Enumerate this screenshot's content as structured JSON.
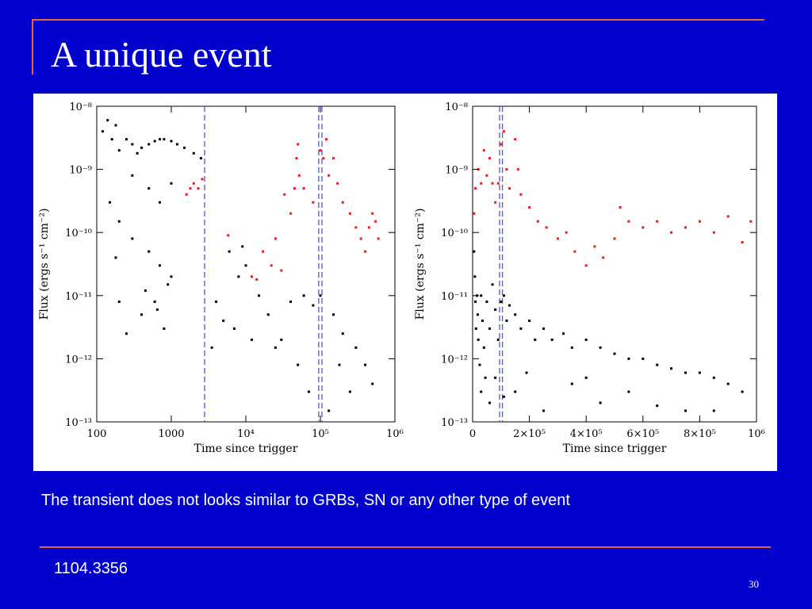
{
  "slide": {
    "title": "A unique event",
    "caption": "The transient does not looks similar to GRBs, SN or any other type of event",
    "reference": "1104.3356",
    "page_number": "30",
    "accent_color": "#e8643c",
    "background_color": "#0000cc"
  },
  "chart_data": [
    {
      "type": "scatter",
      "title": "",
      "xlabel": "Time since trigger",
      "ylabel": "Flux (ergs s⁻¹ cm⁻²)",
      "xscale": "log",
      "yscale": "log",
      "xlim": [
        100,
        1000000
      ],
      "ylim": [
        1e-13,
        1e-08
      ],
      "x_ticks": [
        {
          "v": 100,
          "label": "100"
        },
        {
          "v": 1000,
          "label": "1000"
        },
        {
          "v": 10000,
          "label": "10⁴"
        },
        {
          "v": 100000,
          "label": "10⁵"
        },
        {
          "v": 1000000,
          "label": "10⁶"
        }
      ],
      "y_ticks": [
        {
          "v": 1e-08,
          "label": "10⁻⁸"
        },
        {
          "v": 1e-09,
          "label": "10⁻⁹"
        },
        {
          "v": 1e-10,
          "label": "10⁻¹⁰"
        },
        {
          "v": 1e-11,
          "label": "10⁻¹¹"
        },
        {
          "v": 1e-12,
          "label": "10⁻¹²"
        },
        {
          "v": 1e-13,
          "label": "10⁻¹³"
        }
      ],
      "vlines": [
        2800,
        95000,
        105000
      ],
      "series": [
        {
          "color": "#000000",
          "points": [
            [
              120,
              4e-09
            ],
            [
              140,
              6e-09
            ],
            [
              160,
              3e-09
            ],
            [
              180,
              5e-09
            ],
            [
              200,
              2e-09
            ],
            [
              250,
              3e-09
            ],
            [
              300,
              2.5e-09
            ],
            [
              350,
              1.8e-09
            ],
            [
              400,
              2.2e-09
            ],
            [
              500,
              2.5e-09
            ],
            [
              600,
              2.8e-09
            ],
            [
              700,
              3e-09
            ],
            [
              800,
              3e-09
            ],
            [
              1000,
              2.8e-09
            ],
            [
              1200,
              2.5e-09
            ],
            [
              1500,
              2.2e-09
            ],
            [
              2000,
              1.8e-09
            ],
            [
              2500,
              1.5e-09
            ],
            [
              300,
              8e-10
            ],
            [
              500,
              5e-10
            ],
            [
              700,
              3e-10
            ],
            [
              1000,
              6e-10
            ],
            [
              150,
              3e-10
            ],
            [
              200,
              1.5e-10
            ],
            [
              300,
              8e-11
            ],
            [
              500,
              5e-11
            ],
            [
              700,
              3e-11
            ],
            [
              1000,
              2e-11
            ],
            [
              200,
              8e-12
            ],
            [
              400,
              5e-12
            ],
            [
              600,
              8e-12
            ],
            [
              800,
              3e-12
            ],
            [
              6000,
              5e-11
            ],
            [
              8000,
              2e-11
            ],
            [
              10000,
              3e-11
            ],
            [
              15000,
              1e-11
            ],
            [
              20000,
              5e-12
            ],
            [
              30000,
              2e-12
            ],
            [
              40000,
              8e-12
            ],
            [
              60000,
              1e-11
            ],
            [
              80000,
              7e-12
            ],
            [
              100000,
              1e-11
            ],
            [
              150000,
              5e-12
            ],
            [
              200000,
              2.5e-12
            ],
            [
              300000,
              1.5e-12
            ],
            [
              400000,
              8e-13
            ],
            [
              500000,
              4e-13
            ],
            [
              4000,
              8e-12
            ],
            [
              5000,
              4e-12
            ],
            [
              7000,
              3e-12
            ],
            [
              12000,
              2e-12
            ],
            [
              25000,
              1.5e-12
            ],
            [
              50000,
              8e-13
            ],
            [
              70000,
              3e-13
            ],
            [
              130000,
              1.5e-13
            ],
            [
              250000,
              3e-13
            ],
            [
              180000,
              8e-13
            ],
            [
              3500,
              1.5e-12
            ],
            [
              9000,
              6e-11
            ],
            [
              250,
              2.5e-12
            ],
            [
              180,
              4e-11
            ],
            [
              450,
              1.2e-11
            ],
            [
              900,
              1.5e-11
            ],
            [
              650,
              6e-12
            ]
          ]
        },
        {
          "color": "#e02020",
          "points": [
            [
              1600,
              4e-10
            ],
            [
              1800,
              5e-10
            ],
            [
              2000,
              6e-10
            ],
            [
              2300,
              5e-10
            ],
            [
              2600,
              7e-10
            ],
            [
              5800,
              9e-11
            ],
            [
              12000,
              2e-11
            ],
            [
              14000,
              1.8e-11
            ],
            [
              17000,
              5e-11
            ],
            [
              22000,
              3e-11
            ],
            [
              25000,
              8e-11
            ],
            [
              30000,
              2.5e-11
            ],
            [
              33000,
              4e-10
            ],
            [
              40000,
              2e-10
            ],
            [
              45000,
              5e-10
            ],
            [
              48000,
              1.5e-09
            ],
            [
              50000,
              2.5e-09
            ],
            [
              52000,
              8e-10
            ],
            [
              60000,
              5e-10
            ],
            [
              80000,
              3e-10
            ],
            [
              100000,
              2e-09
            ],
            [
              110000,
              1.5e-09
            ],
            [
              120000,
              3e-09
            ],
            [
              130000,
              8e-10
            ],
            [
              150000,
              1.5e-09
            ],
            [
              170000,
              6e-10
            ],
            [
              200000,
              3e-10
            ],
            [
              250000,
              2e-10
            ],
            [
              300000,
              1.2e-10
            ],
            [
              350000,
              8e-11
            ],
            [
              400000,
              5e-11
            ],
            [
              450000,
              1.2e-10
            ],
            [
              500000,
              2e-10
            ],
            [
              550000,
              1.5e-10
            ],
            [
              600000,
              8e-11
            ]
          ]
        }
      ]
    },
    {
      "type": "scatter",
      "title": "",
      "xlabel": "Time since trigger",
      "ylabel": "Flux (ergs s⁻¹ cm⁻²)",
      "xscale": "linear",
      "yscale": "log",
      "xlim": [
        0,
        1000000
      ],
      "ylim": [
        1e-13,
        1e-08
      ],
      "x_ticks": [
        {
          "v": 0,
          "label": "0"
        },
        {
          "v": 200000,
          "label": "2×10⁵"
        },
        {
          "v": 400000,
          "label": "4×10⁵"
        },
        {
          "v": 600000,
          "label": "6×10⁵"
        },
        {
          "v": 800000,
          "label": "8×10⁵"
        },
        {
          "v": 1000000,
          "label": "10⁶"
        }
      ],
      "y_ticks": [
        {
          "v": 1e-08,
          "label": "10⁻⁸"
        },
        {
          "v": 1e-09,
          "label": "10⁻⁹"
        },
        {
          "v": 1e-10,
          "label": "10⁻¹⁰"
        },
        {
          "v": 1e-11,
          "label": "10⁻¹¹"
        },
        {
          "v": 1e-12,
          "label": "10⁻¹²"
        },
        {
          "v": 1e-13,
          "label": "10⁻¹³"
        }
      ],
      "vlines": [
        95000,
        105000
      ],
      "series": [
        {
          "color": "#000000",
          "points": [
            [
              5000,
              5e-11
            ],
            [
              8000,
              2e-11
            ],
            [
              10000,
              8e-12
            ],
            [
              12000,
              3e-12
            ],
            [
              15000,
              1e-11
            ],
            [
              18000,
              5e-12
            ],
            [
              20000,
              2e-12
            ],
            [
              25000,
              8e-13
            ],
            [
              30000,
              1e-11
            ],
            [
              35000,
              4e-12
            ],
            [
              40000,
              1.5e-12
            ],
            [
              45000,
              5e-13
            ],
            [
              50000,
              8e-12
            ],
            [
              60000,
              3e-12
            ],
            [
              70000,
              1.5e-11
            ],
            [
              80000,
              6e-12
            ],
            [
              90000,
              2e-12
            ],
            [
              100000,
              8e-12
            ],
            [
              110000,
              1e-11
            ],
            [
              120000,
              4e-12
            ],
            [
              130000,
              7e-12
            ],
            [
              150000,
              5e-12
            ],
            [
              170000,
              3e-12
            ],
            [
              200000,
              4e-12
            ],
            [
              220000,
              2e-12
            ],
            [
              250000,
              3e-12
            ],
            [
              280000,
              2e-12
            ],
            [
              320000,
              2.5e-12
            ],
            [
              350000,
              1.5e-12
            ],
            [
              400000,
              2e-12
            ],
            [
              450000,
              1.5e-12
            ],
            [
              500000,
              1.2e-12
            ],
            [
              550000,
              1e-12
            ],
            [
              600000,
              1e-12
            ],
            [
              650000,
              8e-13
            ],
            [
              700000,
              7e-13
            ],
            [
              750000,
              6e-13
            ],
            [
              800000,
              6e-13
            ],
            [
              850000,
              5e-13
            ],
            [
              900000,
              4e-13
            ],
            [
              950000,
              3e-13
            ],
            [
              60000,
              2e-13
            ],
            [
              150000,
              3e-13
            ],
            [
              250000,
              1.5e-13
            ],
            [
              350000,
              4e-13
            ],
            [
              450000,
              2e-13
            ],
            [
              550000,
              3e-13
            ],
            [
              650000,
              1.8e-13
            ],
            [
              750000,
              1.5e-13
            ],
            [
              850000,
              1.5e-13
            ],
            [
              30000,
              3e-13
            ],
            [
              80000,
              5e-13
            ],
            [
              110000,
              2.5e-13
            ],
            [
              190000,
              6e-13
            ],
            [
              400000,
              5e-13
            ]
          ]
        },
        {
          "color": "#e02020",
          "points": [
            [
              5000,
              2e-10
            ],
            [
              10000,
              5e-10
            ],
            [
              20000,
              1e-09
            ],
            [
              30000,
              6e-10
            ],
            [
              40000,
              2e-09
            ],
            [
              50000,
              8e-10
            ],
            [
              60000,
              1.5e-09
            ],
            [
              70000,
              6e-10
            ],
            [
              80000,
              3e-10
            ],
            [
              90000,
              6e-10
            ],
            [
              100000,
              2.5e-09
            ],
            [
              110000,
              4e-09
            ],
            [
              120000,
              1e-09
            ],
            [
              130000,
              5e-10
            ],
            [
              150000,
              3e-09
            ],
            [
              160000,
              1e-09
            ],
            [
              170000,
              4e-10
            ],
            [
              200000,
              2.5e-10
            ],
            [
              230000,
              1.5e-10
            ],
            [
              260000,
              1.2e-10
            ],
            [
              300000,
              8e-11
            ],
            [
              330000,
              1e-10
            ],
            [
              360000,
              5e-11
            ],
            [
              400000,
              3e-11
            ],
            [
              430000,
              6e-11
            ],
            [
              460000,
              4e-11
            ],
            [
              500000,
              8e-11
            ],
            [
              520000,
              2.5e-10
            ],
            [
              550000,
              1.5e-10
            ],
            [
              600000,
              1.2e-10
            ],
            [
              650000,
              1.5e-10
            ],
            [
              700000,
              1e-10
            ],
            [
              750000,
              1.2e-10
            ],
            [
              800000,
              1.5e-10
            ],
            [
              850000,
              1e-10
            ],
            [
              900000,
              1.8e-10
            ],
            [
              950000,
              7e-11
            ],
            [
              980000,
              1.5e-10
            ]
          ]
        }
      ]
    }
  ]
}
